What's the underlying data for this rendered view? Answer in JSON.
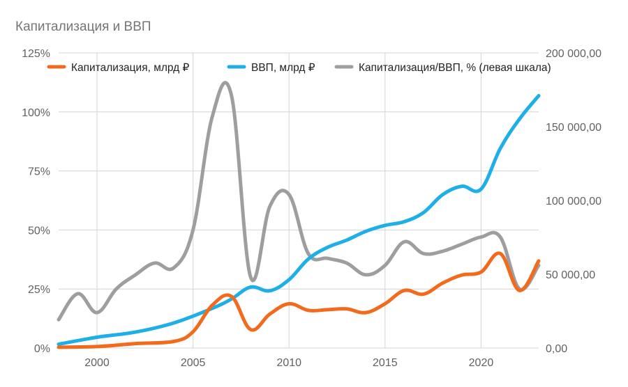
{
  "chart_data": {
    "type": "line",
    "title": "Капитализация и ВВП",
    "x_ticks": [
      2000,
      2005,
      2010,
      2015,
      2020
    ],
    "xlim": [
      1998,
      2023
    ],
    "y_left": {
      "ticks": [
        "0%",
        "25%",
        "50%",
        "75%",
        "100%",
        "125%"
      ],
      "values": [
        0,
        25,
        50,
        75,
        100,
        125
      ],
      "lim": [
        0,
        125
      ],
      "unit": "%"
    },
    "y_right": {
      "ticks": [
        "0,00",
        "50 000,00",
        "100 000,00",
        "150 000,00",
        "200 000,00"
      ],
      "values": [
        0,
        50000,
        100000,
        150000,
        200000
      ],
      "lim": [
        0,
        200000
      ]
    },
    "grid": true,
    "legend_position": "top",
    "series": [
      {
        "name": "Капитализация, млрд ₽",
        "color": "#f26b1d",
        "axis": "right",
        "points": [
          [
            1998,
            500
          ],
          [
            2000,
            1000
          ],
          [
            2002,
            3000
          ],
          [
            2004,
            4500
          ],
          [
            2005,
            11000
          ],
          [
            2006,
            29000
          ],
          [
            2007,
            35000
          ],
          [
            2008,
            12500
          ],
          [
            2009,
            23000
          ],
          [
            2010,
            30000
          ],
          [
            2011,
            25500
          ],
          [
            2012,
            26000
          ],
          [
            2013,
            26500
          ],
          [
            2014,
            24000
          ],
          [
            2015,
            30000
          ],
          [
            2016,
            39000
          ],
          [
            2017,
            36500
          ],
          [
            2018,
            44000
          ],
          [
            2019,
            49500
          ],
          [
            2020,
            51500
          ],
          [
            2021,
            64000
          ],
          [
            2022,
            39000
          ],
          [
            2023,
            59000
          ]
        ]
      },
      {
        "name": "ВВП, млрд ₽",
        "color": "#1eaee8",
        "axis": "right",
        "points": [
          [
            1998,
            2600
          ],
          [
            2000,
            7300
          ],
          [
            2002,
            10800
          ],
          [
            2004,
            17000
          ],
          [
            2006,
            26900
          ],
          [
            2007,
            33200
          ],
          [
            2008,
            41300
          ],
          [
            2009,
            38800
          ],
          [
            2010,
            46300
          ],
          [
            2011,
            60300
          ],
          [
            2012,
            68200
          ],
          [
            2013,
            73100
          ],
          [
            2014,
            79100
          ],
          [
            2015,
            83100
          ],
          [
            2016,
            85600
          ],
          [
            2017,
            91800
          ],
          [
            2018,
            103900
          ],
          [
            2019,
            109600
          ],
          [
            2020,
            107700
          ],
          [
            2021,
            135300
          ],
          [
            2022,
            155200
          ],
          [
            2023,
            171000
          ]
        ]
      },
      {
        "name": "Капитализация/ВВП, % (левая шкала)",
        "color": "#9e9e9e",
        "axis": "left",
        "points": [
          [
            1998,
            12
          ],
          [
            1999,
            23
          ],
          [
            2000,
            15
          ],
          [
            2001,
            25
          ],
          [
            2002,
            31
          ],
          [
            2003,
            36
          ],
          [
            2004,
            34
          ],
          [
            2005,
            50
          ],
          [
            2006,
            98
          ],
          [
            2007,
            107
          ],
          [
            2008,
            30
          ],
          [
            2009,
            60
          ],
          [
            2010,
            65
          ],
          [
            2011,
            40
          ],
          [
            2012,
            38
          ],
          [
            2013,
            36
          ],
          [
            2014,
            31
          ],
          [
            2015,
            35
          ],
          [
            2016,
            45
          ],
          [
            2017,
            40
          ],
          [
            2018,
            41
          ],
          [
            2019,
            44
          ],
          [
            2020,
            47
          ],
          [
            2021,
            47
          ],
          [
            2022,
            25
          ],
          [
            2023,
            35
          ]
        ]
      }
    ]
  }
}
